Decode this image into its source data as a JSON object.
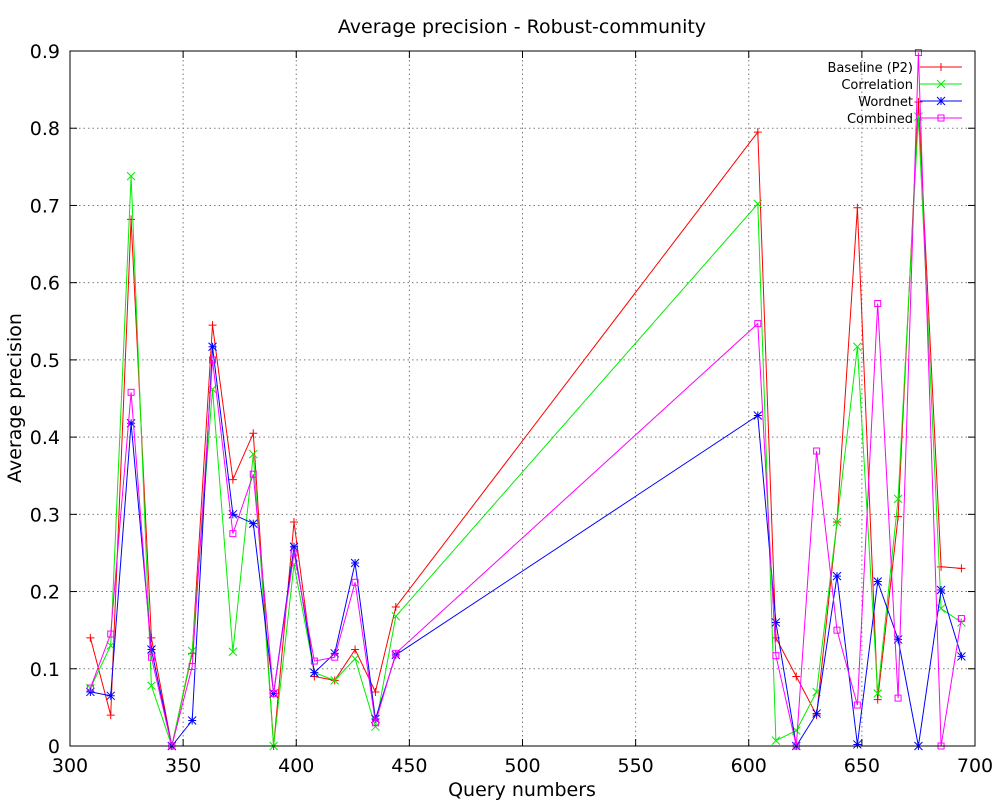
{
  "chart_data": {
    "type": "line",
    "title": "Average precision - Robust-community",
    "xlabel": "Query numbers",
    "ylabel": "Average precision",
    "xlim": [
      300,
      700
    ],
    "ylim": [
      0,
      0.9
    ],
    "xticks": [
      300,
      350,
      400,
      450,
      500,
      550,
      600,
      650,
      700
    ],
    "yticks": [
      0,
      0.1,
      0.2,
      0.3,
      0.4,
      0.5,
      0.6,
      0.7,
      0.8,
      0.9
    ],
    "xtick_labels": [
      "300",
      "350",
      "400",
      "450",
      "500",
      "550",
      "600",
      "650",
      "700"
    ],
    "ytick_labels": [
      "0",
      "0.1",
      "0.2",
      "0.3",
      "0.4",
      "0.5",
      "0.6",
      "0.7",
      "0.8",
      "0.9"
    ],
    "grid": true,
    "legend_position": "top-right",
    "x": [
      309,
      318,
      327,
      336,
      345,
      354,
      363,
      372,
      381,
      390,
      399,
      408,
      417,
      426,
      435,
      444,
      604,
      612,
      621,
      630,
      639,
      648,
      657,
      666,
      675,
      685,
      694
    ],
    "series": [
      {
        "name": "Baseline (P2)",
        "color": "#ff0000",
        "marker": "plus",
        "values": [
          0.14,
          0.04,
          0.682,
          0.14,
          0.0,
          0.12,
          0.545,
          0.345,
          0.405,
          0.0,
          0.29,
          0.09,
          0.085,
          0.125,
          0.07,
          0.18,
          0.795,
          0.14,
          0.09,
          0.04,
          0.29,
          0.697,
          0.06,
          0.297,
          0.834,
          0.232,
          0.23
        ]
      },
      {
        "name": "Correlation",
        "color": "#00ee00",
        "marker": "x",
        "values": [
          0.075,
          0.13,
          0.738,
          0.078,
          0.0,
          0.123,
          0.462,
          0.122,
          0.378,
          0.0,
          0.235,
          0.095,
          0.085,
          0.113,
          0.025,
          0.168,
          0.702,
          0.007,
          0.02,
          0.07,
          0.29,
          0.517,
          0.068,
          0.32,
          0.815,
          0.178,
          0.16
        ]
      },
      {
        "name": "Wordnet",
        "color": "#0000ff",
        "marker": "star",
        "values": [
          0.07,
          0.065,
          0.418,
          0.125,
          0.0,
          0.033,
          0.517,
          0.3,
          0.288,
          0.068,
          0.258,
          0.095,
          0.12,
          0.237,
          0.035,
          0.118,
          0.428,
          0.16,
          0.0,
          0.042,
          0.22,
          0.002,
          0.213,
          0.138,
          0.0,
          0.202,
          0.116
        ]
      },
      {
        "name": "Combined",
        "color": "#ff00ff",
        "marker": "square",
        "values": [
          0.075,
          0.145,
          0.458,
          0.115,
          0.0,
          0.103,
          0.5,
          0.275,
          0.352,
          0.068,
          0.25,
          0.11,
          0.115,
          0.212,
          0.03,
          0.12,
          0.547,
          0.117,
          0.0,
          0.382,
          0.15,
          0.053,
          0.573,
          0.062,
          0.898,
          0.0,
          0.165
        ]
      }
    ]
  }
}
